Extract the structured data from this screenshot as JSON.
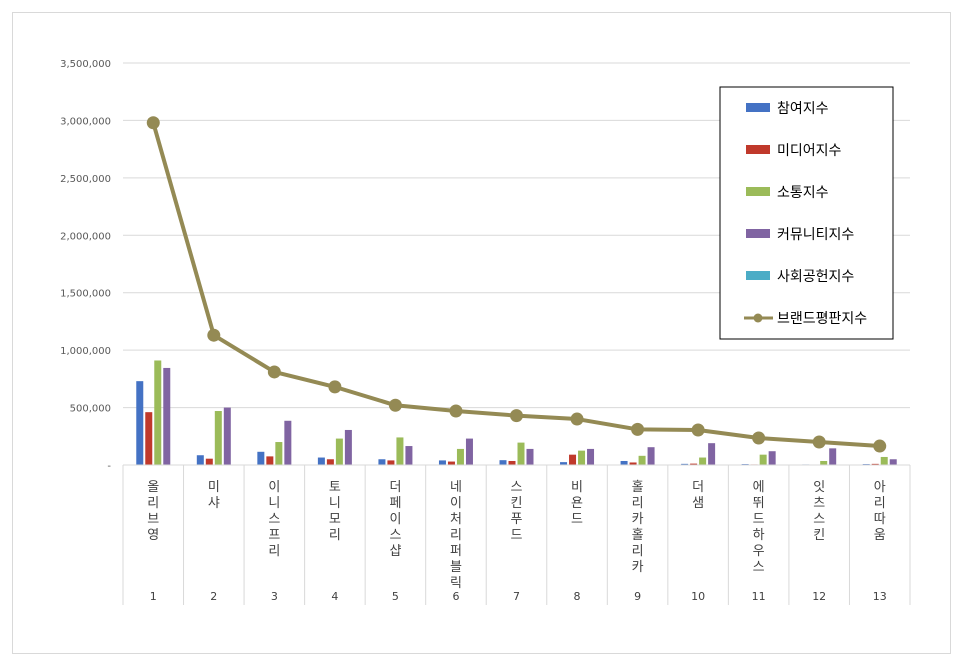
{
  "chart_data": {
    "type": "bar",
    "categories": [
      "올리브영",
      "미샤",
      "이니스프리",
      "토니모리",
      "더페이스샵",
      "네이처리퍼블릭",
      "스킨푸드",
      "비욘드",
      "홀리카홀리카",
      "더샘",
      "에뛰드하우스",
      "잇츠스킨",
      "아리따움"
    ],
    "category_numbers": [
      "1",
      "2",
      "3",
      "4",
      "5",
      "6",
      "7",
      "8",
      "9",
      "10",
      "11",
      "12",
      "13"
    ],
    "ylim": [
      0,
      3500000
    ],
    "yticks": [
      0,
      500000,
      1000000,
      1500000,
      2000000,
      2500000,
      3000000,
      3500000
    ],
    "ytick_labels": [
      "-",
      "500,000",
      "1,000,000",
      "1,500,000",
      "2,000,000",
      "2,500,000",
      "3,000,000",
      "3,500,000"
    ],
    "grid": true,
    "legend_position": "right",
    "series": [
      {
        "name": "참여지수",
        "kind": "bar",
        "color": "#4472c4",
        "values": [
          730000,
          85000,
          115000,
          65000,
          50000,
          40000,
          42000,
          25000,
          35000,
          10000,
          8000,
          5000,
          8000
        ]
      },
      {
        "name": "미디어지수",
        "kind": "bar",
        "color": "#c0392b",
        "values": [
          460000,
          55000,
          75000,
          50000,
          40000,
          30000,
          35000,
          90000,
          22000,
          12000,
          5000,
          4000,
          10000
        ]
      },
      {
        "name": "소통지수",
        "kind": "bar",
        "color": "#9bbb59",
        "values": [
          910000,
          470000,
          200000,
          230000,
          240000,
          140000,
          195000,
          125000,
          80000,
          65000,
          90000,
          35000,
          70000
        ]
      },
      {
        "name": "커뮤니티지수",
        "kind": "bar",
        "color": "#8064a2",
        "values": [
          845000,
          500000,
          385000,
          305000,
          165000,
          230000,
          140000,
          140000,
          155000,
          190000,
          120000,
          145000,
          50000
        ]
      },
      {
        "name": "사회공헌지수",
        "kind": "bar",
        "color": "#4bacc6",
        "values": [
          0,
          0,
          0,
          0,
          0,
          0,
          0,
          0,
          0,
          0,
          0,
          0,
          0
        ]
      },
      {
        "name": "브랜드평판지수",
        "kind": "line",
        "color": "#948a54",
        "values": [
          2980000,
          1130000,
          810000,
          680000,
          520000,
          470000,
          430000,
          400000,
          310000,
          305000,
          235000,
          200000,
          165000
        ]
      }
    ]
  }
}
